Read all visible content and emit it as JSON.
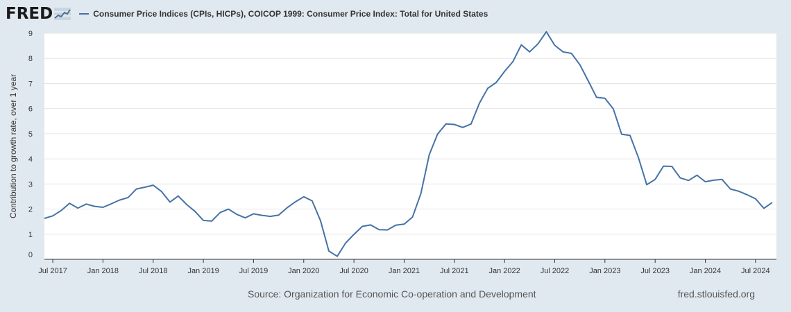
{
  "header": {
    "logo_text": "FRED",
    "logo_icon": "trend-line-icon"
  },
  "chart_data": {
    "type": "line",
    "title": "",
    "ylabel": "Contribution to growth rate, over 1 year",
    "xlabel": "",
    "ylim": [
      0,
      9
    ],
    "y_ticks": [
      "0",
      "1",
      "2",
      "3",
      "4",
      "5",
      "6",
      "7",
      "8",
      "9"
    ],
    "x_tick_labels": [
      "Jul 2017",
      "Jan 2018",
      "Jul 2018",
      "Jan 2019",
      "Jul 2019",
      "Jan 2020",
      "Jul 2020",
      "Jan 2021",
      "Jul 2021",
      "Jan 2022",
      "Jul 2022",
      "Jan 2023",
      "Jul 2023",
      "Jan 2024",
      "Jul 2024"
    ],
    "grid": true,
    "legend_position": "top",
    "series": [
      {
        "name": "Consumer Price Indices (CPIs, HICPs), COICOP 1999: Consumer Price Index: Total for United States",
        "color": "#4572a7",
        "x": [
          "2017-06",
          "2017-07",
          "2017-08",
          "2017-09",
          "2017-10",
          "2017-11",
          "2017-12",
          "2018-01",
          "2018-02",
          "2018-03",
          "2018-04",
          "2018-05",
          "2018-06",
          "2018-07",
          "2018-08",
          "2018-09",
          "2018-10",
          "2018-11",
          "2018-12",
          "2019-01",
          "2019-02",
          "2019-03",
          "2019-04",
          "2019-05",
          "2019-06",
          "2019-07",
          "2019-08",
          "2019-09",
          "2019-10",
          "2019-11",
          "2019-12",
          "2020-01",
          "2020-02",
          "2020-03",
          "2020-04",
          "2020-05",
          "2020-06",
          "2020-07",
          "2020-08",
          "2020-09",
          "2020-10",
          "2020-11",
          "2020-12",
          "2021-01",
          "2021-02",
          "2021-03",
          "2021-04",
          "2021-05",
          "2021-06",
          "2021-07",
          "2021-08",
          "2021-09",
          "2021-10",
          "2021-11",
          "2021-12",
          "2022-01",
          "2022-02",
          "2022-03",
          "2022-04",
          "2022-05",
          "2022-06",
          "2022-07",
          "2022-08",
          "2022-09",
          "2022-10",
          "2022-11",
          "2022-12",
          "2023-01",
          "2023-02",
          "2023-03",
          "2023-04",
          "2023-05",
          "2023-06",
          "2023-07",
          "2023-08",
          "2023-09",
          "2023-10",
          "2023-11",
          "2023-12",
          "2024-01",
          "2024-02",
          "2024-03",
          "2024-04",
          "2024-05",
          "2024-06",
          "2024-07",
          "2024-08",
          "2024-09"
        ],
        "values": [
          1.63,
          1.73,
          1.94,
          2.23,
          2.04,
          2.2,
          2.11,
          2.07,
          2.21,
          2.36,
          2.46,
          2.8,
          2.87,
          2.95,
          2.7,
          2.28,
          2.52,
          2.18,
          1.91,
          1.55,
          1.52,
          1.86,
          2.0,
          1.79,
          1.65,
          1.81,
          1.75,
          1.71,
          1.76,
          2.05,
          2.29,
          2.49,
          2.33,
          1.54,
          0.33,
          0.12,
          0.65,
          0.99,
          1.31,
          1.37,
          1.18,
          1.17,
          1.36,
          1.4,
          1.68,
          2.62,
          4.16,
          4.99,
          5.39,
          5.37,
          5.25,
          5.39,
          6.22,
          6.81,
          7.04,
          7.48,
          7.87,
          8.54,
          8.26,
          8.58,
          9.06,
          8.52,
          8.26,
          8.2,
          7.75,
          7.11,
          6.45,
          6.41,
          5.99,
          4.98,
          4.93,
          4.05,
          2.97,
          3.18,
          3.71,
          3.7,
          3.24,
          3.14,
          3.35,
          3.09,
          3.15,
          3.18,
          2.8,
          2.71,
          2.57,
          2.41,
          2.03,
          2.26
        ]
      }
    ]
  },
  "footer": {
    "source": "Source: Organization for Economic Co-operation and Development",
    "site": "fred.stlouisfed.org"
  }
}
